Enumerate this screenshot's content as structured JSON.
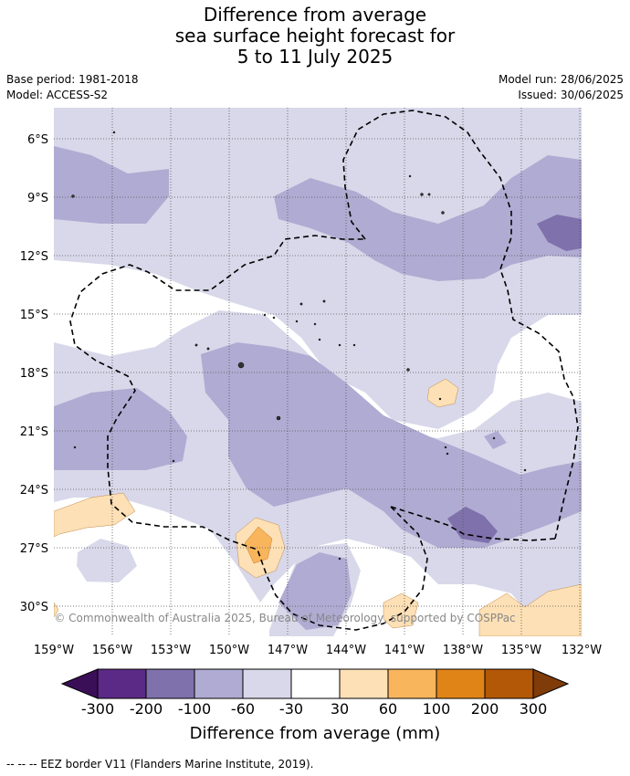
{
  "title": {
    "line1": "Difference from average",
    "line2": "sea surface height forecast for",
    "line3": "5 to 11 July 2025"
  },
  "meta": {
    "base_period": "Base period: 1981-2018",
    "model": "Model: ACCESS-S2",
    "model_run": "Model run: 28/06/2025",
    "issued": "Issued: 30/06/2025"
  },
  "axes": {
    "lat_labels": [
      "6°S",
      "9°S",
      "12°S",
      "15°S",
      "18°S",
      "21°S",
      "24°S",
      "27°S",
      "30°S"
    ],
    "lon_labels": [
      "159°W",
      "156°W",
      "153°W",
      "150°W",
      "147°W",
      "144°W",
      "141°W",
      "138°W",
      "135°W",
      "132°W"
    ]
  },
  "copyright": "© Commonwealth of Australia 2025, Bureau of Meteorology, supported by COSPPac",
  "colorbar": {
    "ticks": [
      "-300",
      "-200",
      "-100",
      "-60",
      "-30",
      "30",
      "60",
      "100",
      "200",
      "300"
    ],
    "colors": [
      "#3b0f57",
      "#5b2a86",
      "#7f71ab",
      "#b0abd2",
      "#d8d8ea",
      "#ffffff",
      "#fde0b5",
      "#f9b55c",
      "#e08418",
      "#b35807",
      "#7f3b08"
    ],
    "label": "Difference from average (mm)"
  },
  "footnote": "--  --  -- EEZ border V11 (Flanders Marine Institute, 2019)."
}
